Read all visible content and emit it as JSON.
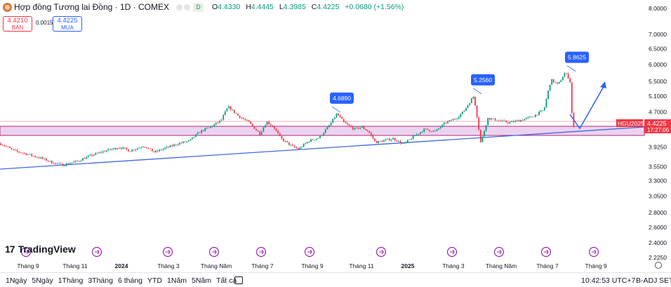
{
  "header": {
    "title": "Hợp đồng Tương lai Đồng · 1D · COMEX",
    "d_badge": "D",
    "ohlc": {
      "o_label": "O",
      "o": "4.4330",
      "h_label": "H",
      "h": "4.4445",
      "l_label": "L",
      "l": "4.3985",
      "c_label": "C",
      "c": "4.4225",
      "change": "+0.0680 (+1.56%)"
    }
  },
  "trade": {
    "sell_price": "4.4210",
    "sell_label": "BÁN",
    "spread": "0.0015",
    "buy_price": "4.4225",
    "buy_label": "MUA"
  },
  "brand": {
    "mark": "17",
    "name": "TradingView"
  },
  "colors": {
    "up": "#089981",
    "down": "#f23645",
    "accent": "#2962ff",
    "zone": "#e1bee7",
    "zone_border": "#b0277a"
  },
  "chart_data": {
    "type": "candlestick",
    "symbol_tag": "HGU2025",
    "last_price": "4.4225",
    "countdown": "17:27:06",
    "price_axis_labels": [
      "8.0000",
      "7.0000",
      "6.5000",
      "6.0000",
      "5.5000",
      "5.1000",
      "4.7000",
      "3.9250",
      "3.5500",
      "3.3000",
      "3.0500",
      "2.8000",
      "2.6000",
      "2.4000",
      "2.2250"
    ],
    "time_axis_labels": [
      "Tháng 9",
      "Tháng 11",
      "2024",
      "Tháng 3",
      "Tháng Năm",
      "Tháng 7",
      "Tháng 9",
      "Tháng 11",
      "2025",
      "Tháng 3",
      "Tháng Năm",
      "Tháng 7",
      "Tháng 9"
    ],
    "peak_labels": [
      "4.6890",
      "5.2560",
      "5.8625"
    ],
    "ylim": [
      2.2,
      8.2
    ],
    "log_scale": true,
    "price_path": [
      [
        0,
        4.0
      ],
      [
        20,
        3.85
      ],
      [
        40,
        3.78
      ],
      [
        60,
        3.7
      ],
      [
        75,
        3.62
      ],
      [
        90,
        3.58
      ],
      [
        110,
        3.65
      ],
      [
        130,
        3.76
      ],
      [
        150,
        3.85
      ],
      [
        170,
        3.92
      ],
      [
        185,
        3.85
      ],
      [
        205,
        3.95
      ],
      [
        220,
        3.82
      ],
      [
        235,
        3.9
      ],
      [
        255,
        4.0
      ],
      [
        270,
        4.05
      ],
      [
        285,
        4.25
      ],
      [
        300,
        4.35
      ],
      [
        315,
        4.5
      ],
      [
        325,
        4.83
      ],
      [
        330,
        4.75
      ],
      [
        340,
        4.6
      ],
      [
        355,
        4.45
      ],
      [
        370,
        4.2
      ],
      [
        380,
        4.47
      ],
      [
        390,
        4.35
      ],
      [
        400,
        4.1
      ],
      [
        415,
        3.95
      ],
      [
        425,
        3.88
      ],
      [
        440,
        4.05
      ],
      [
        455,
        4.12
      ],
      [
        470,
        4.4
      ],
      [
        480,
        4.66
      ],
      [
        490,
        4.45
      ],
      [
        505,
        4.3
      ],
      [
        515,
        4.35
      ],
      [
        525,
        4.25
      ],
      [
        535,
        4.02
      ],
      [
        545,
        4.05
      ],
      [
        560,
        4.1
      ],
      [
        575,
        3.98
      ],
      [
        590,
        4.15
      ],
      [
        605,
        4.3
      ],
      [
        620,
        4.25
      ],
      [
        635,
        4.45
      ],
      [
        650,
        4.55
      ],
      [
        660,
        4.7
      ],
      [
        675,
        5.1
      ],
      [
        685,
        4.0
      ],
      [
        695,
        4.55
      ],
      [
        710,
        4.5
      ],
      [
        725,
        4.45
      ],
      [
        745,
        4.52
      ],
      [
        760,
        4.6
      ],
      [
        775,
        4.75
      ],
      [
        785,
        5.55
      ],
      [
        795,
        5.4
      ],
      [
        805,
        5.75
      ],
      [
        812,
        5.55
      ],
      [
        816,
        4.3
      ],
      [
        820,
        4.42
      ]
    ]
  }
}
